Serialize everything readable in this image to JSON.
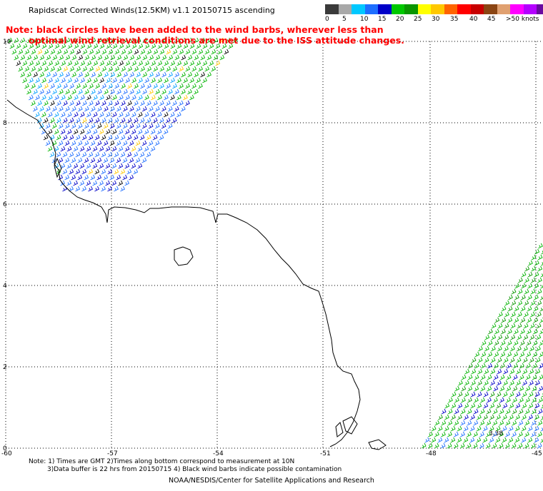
{
  "title": "Rapidscat Corrected Winds(12.5KM) v1.1 20150715 ascending",
  "note": {
    "line1": "Note: black circles have been added to the wind barbs, wherever less than",
    "line2": "optimal wind retrieval conditions are met due to the ISS attitude changes."
  },
  "legend": {
    "unit_label": ">50 knots",
    "labels": [
      "0",
      "5",
      "10",
      "15",
      "20",
      "25",
      "30",
      "35",
      "40",
      "45"
    ],
    "colors": [
      "#3a3a3a",
      "#a8a8a8",
      "#00c8ff",
      "#1e6eff",
      "#0000c8",
      "#00c800",
      "#0a9600",
      "#ffff00",
      "#ffc800",
      "#ff6400",
      "#ff0000",
      "#c80000",
      "#8b4513",
      "#e0a070",
      "#ff00ff",
      "#b400ff",
      "#6a0aa0"
    ]
  },
  "map": {
    "lon_labels": [
      "-60",
      "-57",
      "-54",
      "-51",
      "-48",
      "-45"
    ],
    "lat_labels": [
      "10",
      "8",
      "6",
      "4",
      "2",
      "0"
    ],
    "annotation": "3.38"
  },
  "footer": {
    "line1": "Note: 1) Times are GMT 2)Times along bottom correspond to measurement at 10N",
    "line2": "3)Data buffer is 22 hrs from 20150715 4) Black wind barbs indicate possible contamination",
    "credit": "NOAA/NESDIS/Center for Satellite Applications and Research"
  }
}
